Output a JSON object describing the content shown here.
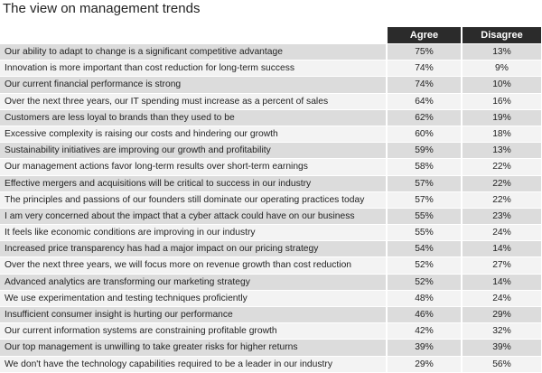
{
  "page_title": "The view on management trends",
  "chart_data": {
    "type": "table",
    "title": "The view on management trends",
    "columns": [
      "Agree",
      "Disagree"
    ],
    "rows": [
      {
        "statement": "Our ability to adapt to change is a significant competitive advantage",
        "agree": "75%",
        "disagree": "13%"
      },
      {
        "statement": "Innovation is more important than cost reduction for long-term success",
        "agree": "74%",
        "disagree": "9%"
      },
      {
        "statement": "Our current financial performance is strong",
        "agree": "74%",
        "disagree": "10%"
      },
      {
        "statement": "Over the next three years, our IT spending must increase as a percent of sales",
        "agree": "64%",
        "disagree": "16%"
      },
      {
        "statement": "Customers are less loyal to brands than they used to be",
        "agree": "62%",
        "disagree": "19%"
      },
      {
        "statement": "Excessive complexity is raising our costs and hindering our growth",
        "agree": "60%",
        "disagree": "18%"
      },
      {
        "statement": "Sustainability initiatives are improving our growth and profitability",
        "agree": "59%",
        "disagree": "13%"
      },
      {
        "statement": "Our management actions favor long-term results over short-term earnings",
        "agree": "58%",
        "disagree": "22%"
      },
      {
        "statement": "Effective mergers and acquisitions will be critical to success in our industry",
        "agree": "57%",
        "disagree": "22%"
      },
      {
        "statement": "The principles and passions of our founders still dominate our operating practices today",
        "agree": "57%",
        "disagree": "22%"
      },
      {
        "statement": "I am very concerned about the impact that a cyber attack could have on our business",
        "agree": "55%",
        "disagree": "23%"
      },
      {
        "statement": "It feels like economic conditions are improving in our industry",
        "agree": "55%",
        "disagree": "24%"
      },
      {
        "statement": "Increased price transparency has had a major impact on our pricing strategy",
        "agree": "54%",
        "disagree": "14%"
      },
      {
        "statement": "Over the next three years, we will focus more on revenue growth than cost reduction",
        "agree": "52%",
        "disagree": "27%"
      },
      {
        "statement": "Advanced analytics are transforming our marketing strategy",
        "agree": "52%",
        "disagree": "14%"
      },
      {
        "statement": "We use experimentation and testing techniques proficiently",
        "agree": "48%",
        "disagree": "24%"
      },
      {
        "statement": "Insufficient consumer insight is hurting our performance",
        "agree": "46%",
        "disagree": "29%"
      },
      {
        "statement": "Our current information systems are constraining profitable growth",
        "agree": "42%",
        "disagree": "32%"
      },
      {
        "statement": "Our top management is unwilling to take greater risks for higher returns",
        "agree": "39%",
        "disagree": "39%"
      },
      {
        "statement": "We don't have the technology capabilities required to be a leader in our industry",
        "agree": "29%",
        "disagree": "56%"
      }
    ]
  }
}
